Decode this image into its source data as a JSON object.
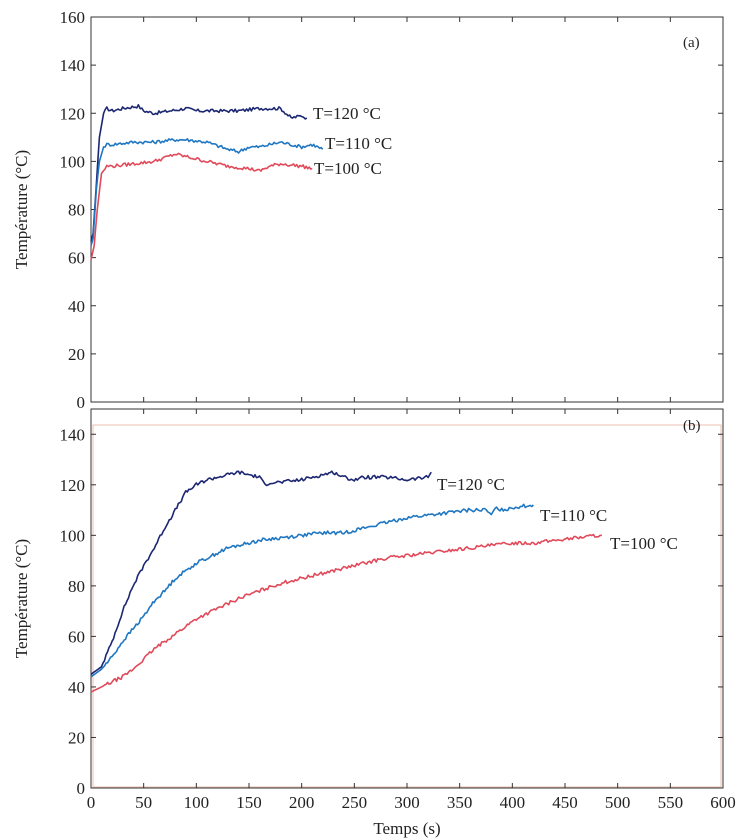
{
  "colors": {
    "T120": "#1c2772",
    "T110": "#1f77c2",
    "T100": "#e14a5a",
    "panel_b_border": "#e8c0b0"
  },
  "chart_data": [
    {
      "type": "line",
      "panel_label": "(a)",
      "ylabel": "Température (°C)",
      "xlabel": "",
      "ylim": [
        0,
        160
      ],
      "yticks": [
        "0",
        "20",
        "40",
        "60",
        "80",
        "100",
        "120",
        "140",
        "160"
      ],
      "xlim": [
        0,
        600
      ],
      "grid": false,
      "series": [
        {
          "name": "T=120 °C",
          "color_key": "T120",
          "x": [
            0,
            2,
            5,
            8,
            12,
            15,
            20,
            30,
            45,
            50,
            60,
            75,
            90,
            100,
            120,
            140,
            160,
            180,
            190,
            200,
            205
          ],
          "y": [
            67,
            70,
            90,
            110,
            120,
            122,
            121,
            122,
            123,
            121,
            120,
            121,
            122,
            121,
            121,
            121,
            122,
            122,
            118,
            119,
            118
          ]
        },
        {
          "name": "T=110 °C",
          "color_key": "T110",
          "x": [
            0,
            2,
            5,
            8,
            12,
            15,
            20,
            40,
            60,
            80,
            90,
            110,
            130,
            140,
            150,
            160,
            180,
            200,
            210,
            220
          ],
          "y": [
            65,
            68,
            88,
            100,
            106,
            107,
            107,
            108,
            108,
            109,
            109,
            108,
            105,
            104,
            106,
            106,
            108,
            106,
            107,
            105
          ]
        },
        {
          "name": "T=100 °C",
          "color_key": "T100",
          "x": [
            0,
            3,
            6,
            10,
            15,
            20,
            40,
            60,
            80,
            90,
            110,
            130,
            150,
            160,
            170,
            180,
            200,
            210
          ],
          "y": [
            59,
            65,
            80,
            95,
            98,
            98,
            99,
            100,
            103,
            102,
            100,
            98,
            97,
            96,
            98,
            99,
            98,
            97
          ]
        }
      ]
    },
    {
      "type": "line",
      "panel_label": "(b)",
      "ylabel": "Température (°C)",
      "xlabel": "Temps (s)",
      "ylim": [
        0,
        150
      ],
      "yticks": [
        "0",
        "20",
        "40",
        "60",
        "80",
        "100",
        "120",
        "140"
      ],
      "xlim": [
        0,
        600
      ],
      "xticks": [
        "0",
        "50",
        "100",
        "150",
        "200",
        "250",
        "300",
        "350",
        "400",
        "450",
        "500",
        "550",
        "600"
      ],
      "grid": false,
      "series": [
        {
          "name": "T=120 °C",
          "color_key": "T120",
          "x": [
            0,
            10,
            20,
            30,
            40,
            50,
            60,
            70,
            80,
            90,
            100,
            110,
            120,
            130,
            140,
            150,
            160,
            165,
            170,
            180,
            200,
            220,
            230,
            240,
            250,
            260,
            280,
            300,
            320,
            323
          ],
          "y": [
            45,
            48,
            58,
            70,
            80,
            88,
            95,
            103,
            110,
            117,
            120,
            122,
            123,
            124,
            125,
            124,
            123,
            120,
            121,
            121,
            122,
            124,
            125,
            123,
            122,
            123,
            123,
            122,
            123,
            125
          ]
        },
        {
          "name": "T=110 °C",
          "color_key": "T110",
          "x": [
            0,
            10,
            20,
            30,
            40,
            50,
            60,
            70,
            80,
            90,
            100,
            110,
            120,
            130,
            140,
            150,
            160,
            180,
            200,
            220,
            240,
            250,
            260,
            280,
            300,
            320,
            340,
            360,
            375,
            380,
            385,
            390,
            400,
            420
          ],
          "y": [
            44,
            47,
            52,
            58,
            63,
            68,
            74,
            78,
            83,
            86,
            89,
            91,
            93,
            95,
            96,
            97,
            98,
            99,
            100,
            101,
            101,
            102,
            103,
            105,
            107,
            108,
            109,
            110,
            110,
            108,
            111,
            110,
            111,
            112
          ]
        },
        {
          "name": "T=100 °C",
          "color_key": "T100",
          "x": [
            0,
            10,
            20,
            30,
            40,
            50,
            60,
            70,
            80,
            90,
            100,
            120,
            140,
            160,
            180,
            200,
            220,
            240,
            260,
            280,
            300,
            320,
            340,
            360,
            380,
            400,
            420,
            440,
            460,
            480,
            485
          ],
          "y": [
            38,
            40,
            42,
            44,
            47,
            51,
            55,
            58,
            61,
            64,
            67,
            71,
            75,
            78,
            81,
            83,
            85,
            87,
            89,
            91,
            92,
            93,
            94,
            95,
            96,
            97,
            97,
            98,
            99,
            100,
            100
          ]
        }
      ]
    }
  ]
}
